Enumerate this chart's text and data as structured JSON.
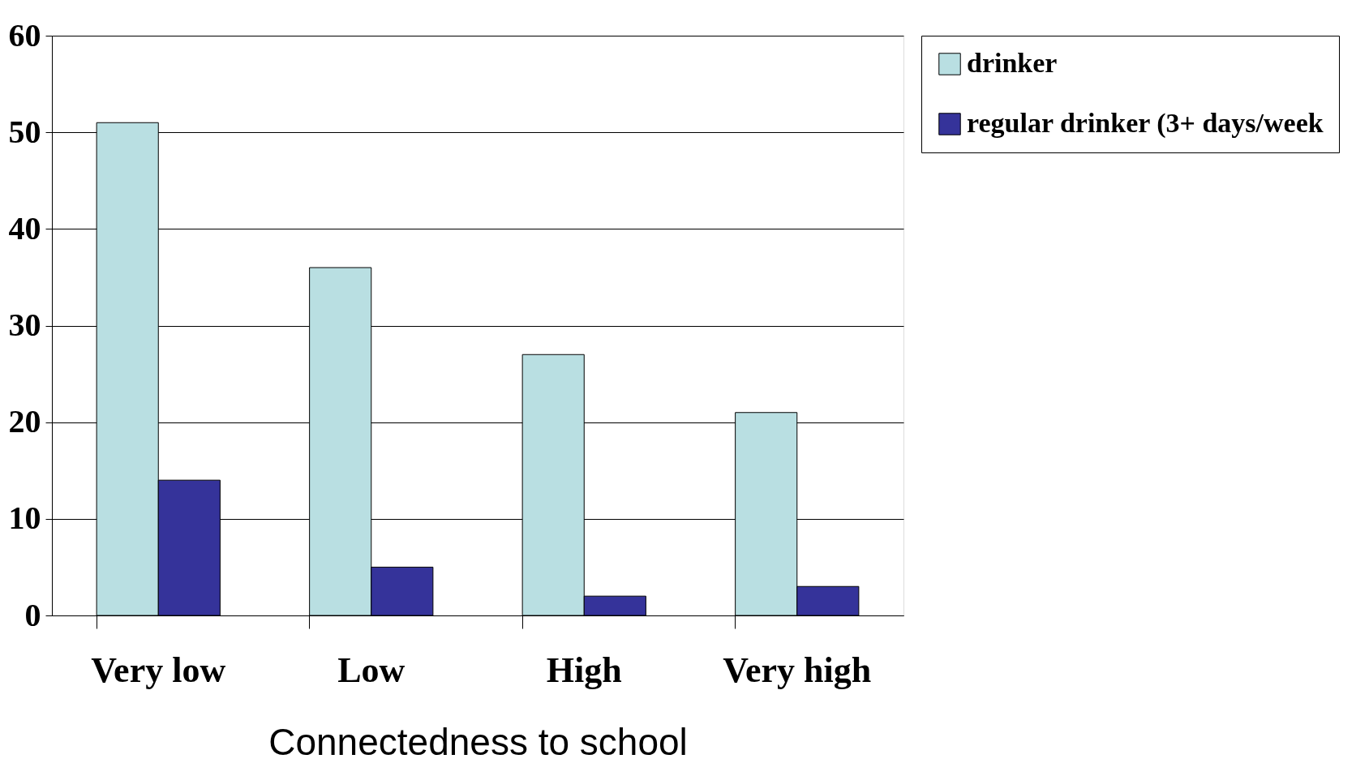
{
  "chart_data": {
    "type": "bar",
    "xlabel": "Connectedness to school",
    "categories": [
      "Very low",
      "Low",
      "High",
      "Very high"
    ],
    "series": [
      {
        "name": "drinker",
        "color": "#b9dfe2",
        "values": [
          51,
          36,
          27,
          21
        ]
      },
      {
        "name": "regular drinker (3+ days/week",
        "color": "#35339a",
        "values": [
          14,
          5,
          2,
          3
        ]
      }
    ],
    "ylim": [
      0,
      60
    ],
    "yticks": [
      0,
      10,
      20,
      30,
      40,
      50,
      60
    ],
    "grid": "y",
    "legend": "right"
  }
}
